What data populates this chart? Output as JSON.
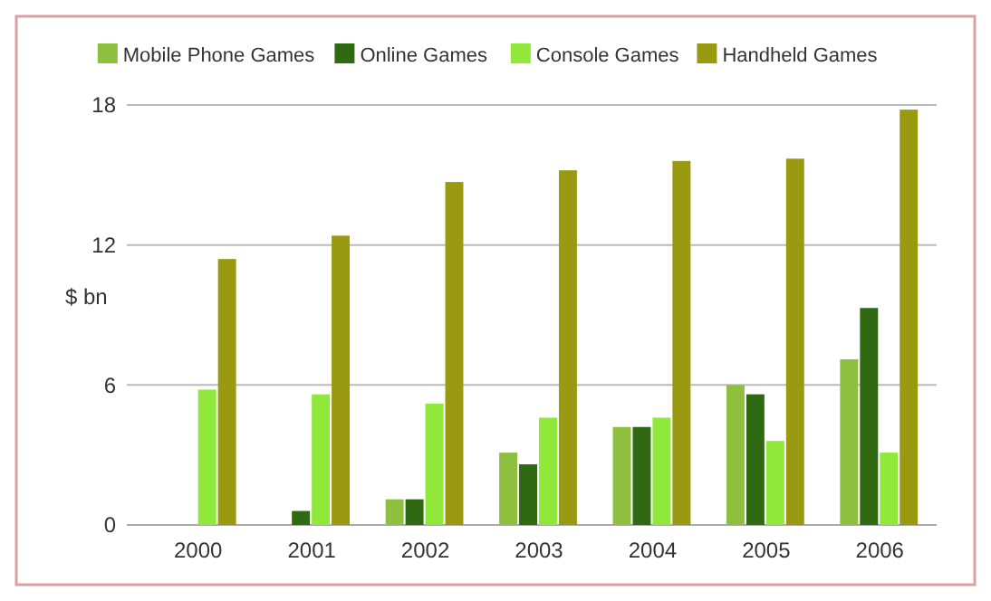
{
  "chart_data": {
    "type": "bar",
    "ylabel": "$ bn",
    "categories": [
      "2000",
      "2001",
      "2002",
      "2003",
      "2004",
      "2005",
      "2006"
    ],
    "series": [
      {
        "name": "Mobile Phone Games",
        "color": "#8fbf3f",
        "values": [
          0,
          0,
          1.1,
          3.1,
          4.2,
          6.0,
          7.1
        ]
      },
      {
        "name": "Online Games",
        "color": "#2f6a12",
        "values": [
          0,
          0.6,
          1.1,
          2.6,
          4.2,
          5.6,
          9.3
        ]
      },
      {
        "name": "Console Games",
        "color": "#8fe83a",
        "values": [
          5.8,
          5.6,
          5.2,
          4.6,
          4.6,
          3.6,
          3.1
        ]
      },
      {
        "name": "Handheld Games",
        "color": "#999912",
        "values": [
          11.4,
          12.4,
          14.7,
          15.2,
          15.6,
          15.7,
          17.8
        ]
      }
    ],
    "ylim": [
      0,
      18
    ],
    "yticks": [
      0,
      6,
      12,
      18
    ],
    "grid": "y",
    "legend": "top"
  }
}
